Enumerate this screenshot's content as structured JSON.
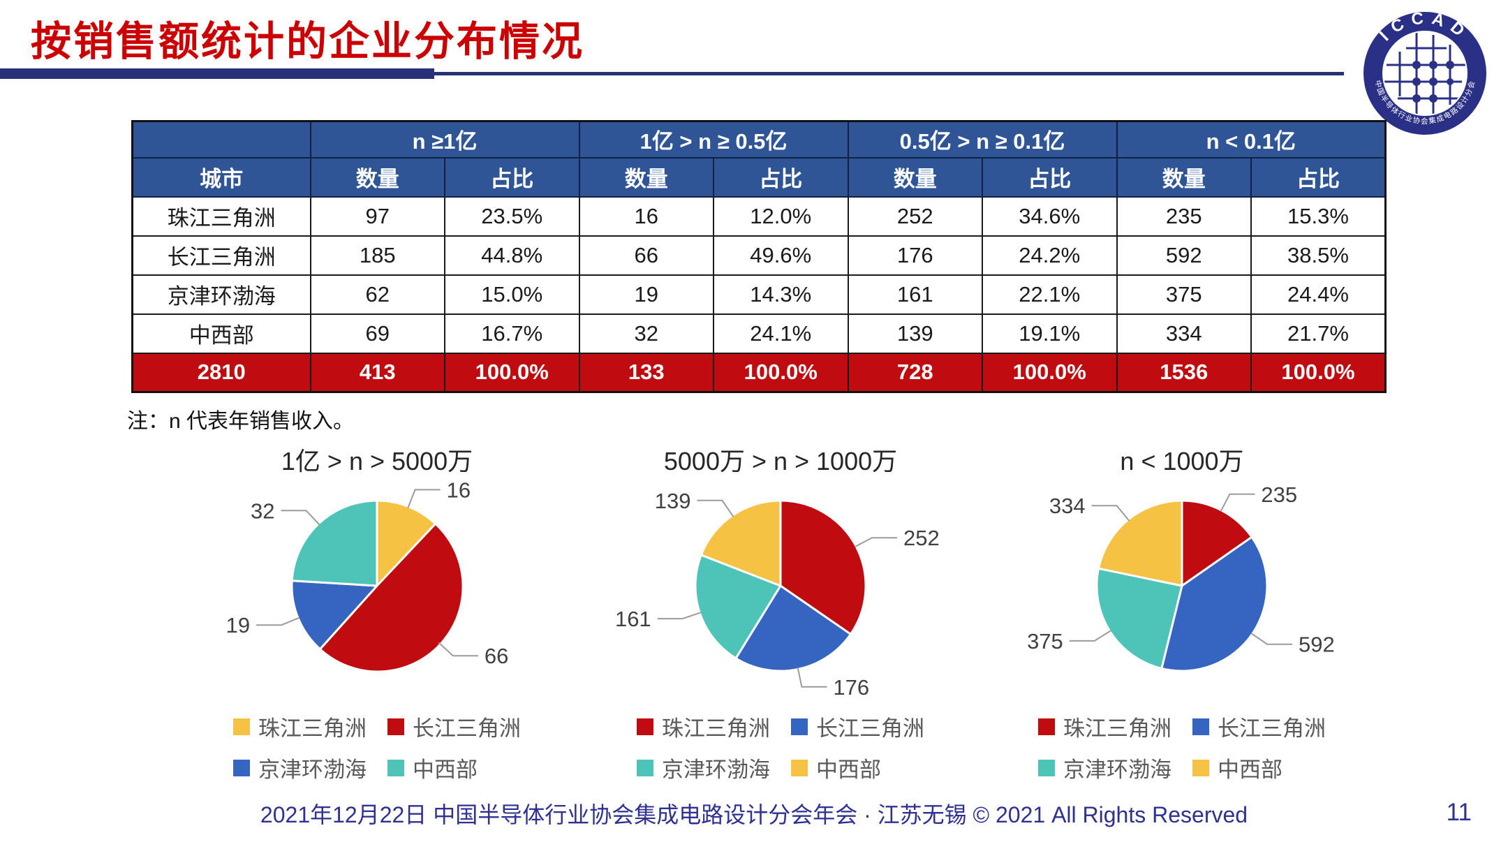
{
  "slide": {
    "title": "按销售额统计的企业分布情况",
    "note": "注：n 代表年销售收入。",
    "footer": "2021年12月22日 中国半导体行业协会集成电路设计分会年会 · 江苏无锡 © 2021 All Rights Reserved",
    "page_number": "11"
  },
  "logo": {
    "top_text": "ICCAD",
    "bottom_text": "中国半导体行业协会集成电路设计分会"
  },
  "table": {
    "city_header": "城市",
    "group_headers": [
      "n ≥1亿",
      "1亿 > n ≥ 0.5亿",
      "0.5亿 > n ≥ 0.1亿",
      "n < 0.1亿"
    ],
    "sub_headers": [
      "数量",
      "占比"
    ],
    "rows": [
      {
        "city": "珠江三角洲",
        "values": [
          "97",
          "23.5%",
          "16",
          "12.0%",
          "252",
          "34.6%",
          "235",
          "15.3%"
        ]
      },
      {
        "city": "长江三角洲",
        "values": [
          "185",
          "44.8%",
          "66",
          "49.6%",
          "176",
          "24.2%",
          "592",
          "38.5%"
        ]
      },
      {
        "city": "京津环渤海",
        "values": [
          "62",
          "15.0%",
          "19",
          "14.3%",
          "161",
          "22.1%",
          "375",
          "24.4%"
        ]
      },
      {
        "city": "中西部",
        "values": [
          "69",
          "16.7%",
          "32",
          "24.1%",
          "139",
          "19.1%",
          "334",
          "21.7%"
        ]
      }
    ],
    "total_row": [
      "2810",
      "413",
      "100.0%",
      "133",
      "100.0%",
      "728",
      "100.0%",
      "1536",
      "100.0%"
    ]
  },
  "chart_data": [
    {
      "type": "pie",
      "title": "1亿 > n > 5000万",
      "categories": [
        "珠江三角洲",
        "长江三角洲",
        "京津环渤海",
        "中西部"
      ],
      "values": [
        16,
        66,
        19,
        32
      ],
      "colors": [
        "#F5C243",
        "#C00C10",
        "#3565C1",
        "#4EC3B8"
      ],
      "start_angle_deg": 0,
      "direction": "clockwise",
      "legend_position": "bottom"
    },
    {
      "type": "pie",
      "title": "5000万 > n > 1000万",
      "categories": [
        "珠江三角洲",
        "长江三角洲",
        "京津环渤海",
        "中西部"
      ],
      "values": [
        252,
        176,
        161,
        139
      ],
      "colors": [
        "#C00C10",
        "#3565C1",
        "#4EC3B8",
        "#F5C243"
      ],
      "start_angle_deg": 0,
      "direction": "clockwise",
      "legend_position": "bottom"
    },
    {
      "type": "pie",
      "title": "n < 1000万",
      "categories": [
        "珠江三角洲",
        "长江三角洲",
        "京津环渤海",
        "中西部"
      ],
      "values": [
        235,
        592,
        375,
        334
      ],
      "colors": [
        "#C00C10",
        "#3565C1",
        "#4EC3B8",
        "#F5C243"
      ],
      "start_angle_deg": 0,
      "direction": "clockwise",
      "legend_position": "bottom"
    }
  ],
  "colors": {
    "title_red": "#CC0000",
    "header_blue": "#2F5597",
    "total_red": "#C00C10",
    "navy_bar": "#283178",
    "footer_navy": "#2E3192",
    "pie_yellow": "#F5C243",
    "pie_red": "#C00C10",
    "pie_blue": "#3565C1",
    "pie_teal": "#4EC3B8"
  }
}
